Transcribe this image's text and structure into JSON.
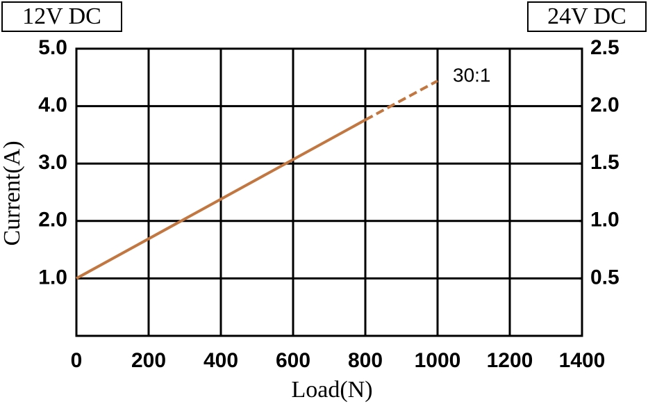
{
  "chart_data": {
    "type": "line",
    "left_box": "12V DC",
    "right_box": "24V DC",
    "x_label": "Load(N)",
    "y_label": "Current(A)",
    "annotation": "30:1",
    "xlim": [
      0,
      1400
    ],
    "xticks": [
      0,
      200,
      400,
      600,
      800,
      1000,
      1200,
      1400
    ],
    "ylim": [
      0,
      5
    ],
    "yticks": [
      {
        "value": 1,
        "label": "1.0"
      },
      {
        "value": 2,
        "label": "2.0"
      },
      {
        "value": 3,
        "label": "3.0"
      },
      {
        "value": 4,
        "label": "4.0"
      },
      {
        "value": 5,
        "label": "5.0"
      }
    ],
    "y2lim": [
      0,
      2.5
    ],
    "y2ticks": [
      0.5,
      {
        "value": 1,
        "label": "1.0"
      },
      1.5,
      {
        "value": 2,
        "label": "2.0"
      },
      2.5
    ],
    "grid": true,
    "series": [
      {
        "color": "#c27640",
        "x": [
          0,
          800,
          1000
        ],
        "values": [
          1.0,
          3.76,
          4.44
        ],
        "segment_styles": [
          "solid",
          "dashed"
        ]
      }
    ]
  }
}
